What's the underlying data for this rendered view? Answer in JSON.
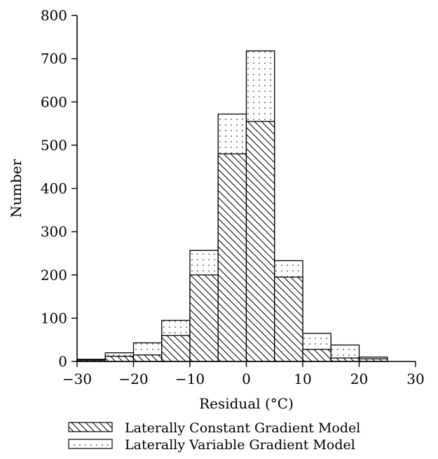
{
  "chart_data": {
    "type": "bar",
    "subtype": "histogram-overlay",
    "xlabel": "Residual (°C)",
    "ylabel": "Number",
    "xlim": [
      -30,
      30
    ],
    "ylim": [
      0,
      800
    ],
    "xticks": [
      -30,
      -20,
      -10,
      0,
      10,
      20,
      30
    ],
    "yticks": [
      0,
      100,
      200,
      300,
      400,
      500,
      600,
      700,
      800
    ],
    "bin_edges": [
      -30,
      -25,
      -20,
      -15,
      -10,
      -5,
      0,
      5,
      10,
      15,
      20,
      25,
      30
    ],
    "grid": false,
    "legend_position": "bottom",
    "series": [
      {
        "name": "Laterally Constant Gradient Model",
        "pattern": "diagonal-hatch",
        "values": [
          3,
          12,
          15,
          60,
          200,
          480,
          555,
          195,
          28,
          8,
          6,
          0
        ]
      },
      {
        "name": "Laterally Variable Gradient Model",
        "pattern": "dotted",
        "values": [
          5,
          20,
          43,
          95,
          257,
          572,
          718,
          233,
          65,
          38,
          10,
          0
        ]
      }
    ]
  }
}
